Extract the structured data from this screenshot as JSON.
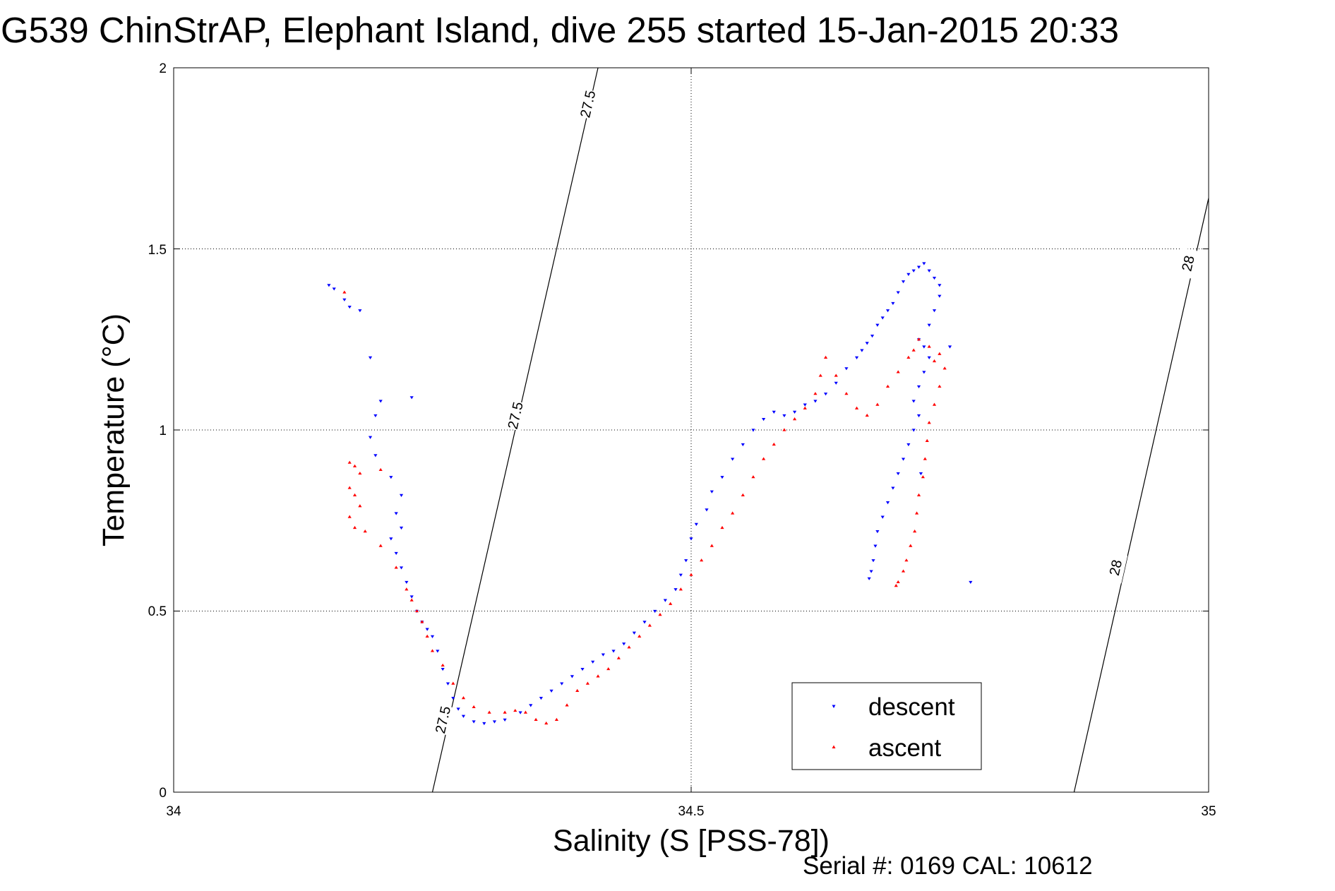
{
  "chart_data": {
    "type": "scatter",
    "title": "G539 ChinStrAP, Elephant Island, dive 255 started 15-Jan-2015 20:33",
    "xlabel": "Salinity (S [PSS-78])",
    "ylabel": "Temperature (°C)",
    "xlim": [
      34,
      35
    ],
    "ylim": [
      0,
      2
    ],
    "x_ticks": [
      "34",
      "34.5",
      "35"
    ],
    "y_ticks": [
      "0",
      "0.5",
      "1",
      "1.5",
      "2"
    ],
    "grid": true,
    "legend_position": "bottom-right",
    "footer": "Serial #: 0169 CAL: 10612",
    "density_contours": [
      {
        "label": "27.5",
        "points": [
          [
            34.25,
            0.0
          ],
          [
            34.41,
            2.0
          ]
        ],
        "label_positions": [
          [
            34.26,
            0.2
          ],
          [
            34.33,
            1.04
          ],
          [
            34.4,
            1.9
          ]
        ]
      },
      {
        "label": "28",
        "points": [
          [
            34.87,
            0.0
          ],
          [
            35.0,
            1.64
          ]
        ],
        "label_positions": [
          [
            34.91,
            0.62
          ],
          [
            34.98,
            1.46
          ]
        ]
      }
    ],
    "series": [
      {
        "name": "descent",
        "color": "#0000ff",
        "marker": "triangle-down",
        "points": [
          [
            34.15,
            1.4
          ],
          [
            34.155,
            1.39
          ],
          [
            34.165,
            1.36
          ],
          [
            34.17,
            1.34
          ],
          [
            34.18,
            1.33
          ],
          [
            34.19,
            1.2
          ],
          [
            34.2,
            1.08
          ],
          [
            34.23,
            1.09
          ],
          [
            34.195,
            1.04
          ],
          [
            34.19,
            0.98
          ],
          [
            34.195,
            0.93
          ],
          [
            34.21,
            0.87
          ],
          [
            34.22,
            0.82
          ],
          [
            34.215,
            0.77
          ],
          [
            34.22,
            0.73
          ],
          [
            34.21,
            0.7
          ],
          [
            34.215,
            0.66
          ],
          [
            34.22,
            0.62
          ],
          [
            34.225,
            0.58
          ],
          [
            34.23,
            0.54
          ],
          [
            34.235,
            0.5
          ],
          [
            34.24,
            0.47
          ],
          [
            34.245,
            0.45
          ],
          [
            34.25,
            0.43
          ],
          [
            34.255,
            0.39
          ],
          [
            34.26,
            0.34
          ],
          [
            34.265,
            0.3
          ],
          [
            34.27,
            0.26
          ],
          [
            34.275,
            0.23
          ],
          [
            34.28,
            0.21
          ],
          [
            34.29,
            0.195
          ],
          [
            34.3,
            0.19
          ],
          [
            34.31,
            0.195
          ],
          [
            34.32,
            0.2
          ],
          [
            34.335,
            0.22
          ],
          [
            34.345,
            0.24
          ],
          [
            34.355,
            0.26
          ],
          [
            34.365,
            0.28
          ],
          [
            34.375,
            0.3
          ],
          [
            34.385,
            0.32
          ],
          [
            34.395,
            0.34
          ],
          [
            34.405,
            0.36
          ],
          [
            34.415,
            0.38
          ],
          [
            34.425,
            0.39
          ],
          [
            34.435,
            0.41
          ],
          [
            34.445,
            0.44
          ],
          [
            34.455,
            0.47
          ],
          [
            34.465,
            0.5
          ],
          [
            34.475,
            0.53
          ],
          [
            34.485,
            0.56
          ],
          [
            34.49,
            0.6
          ],
          [
            34.495,
            0.64
          ],
          [
            34.5,
            0.7
          ],
          [
            34.505,
            0.74
          ],
          [
            34.515,
            0.78
          ],
          [
            34.52,
            0.83
          ],
          [
            34.53,
            0.87
          ],
          [
            34.54,
            0.92
          ],
          [
            34.55,
            0.96
          ],
          [
            34.56,
            1.0
          ],
          [
            34.57,
            1.03
          ],
          [
            34.58,
            1.05
          ],
          [
            34.59,
            1.04
          ],
          [
            34.6,
            1.05
          ],
          [
            34.61,
            1.07
          ],
          [
            34.62,
            1.08
          ],
          [
            34.63,
            1.1
          ],
          [
            34.64,
            1.13
          ],
          [
            34.65,
            1.17
          ],
          [
            34.66,
            1.2
          ],
          [
            34.665,
            1.22
          ],
          [
            34.67,
            1.24
          ],
          [
            34.675,
            1.26
          ],
          [
            34.68,
            1.29
          ],
          [
            34.685,
            1.31
          ],
          [
            34.69,
            1.33
          ],
          [
            34.695,
            1.35
          ],
          [
            34.7,
            1.38
          ],
          [
            34.705,
            1.41
          ],
          [
            34.71,
            1.43
          ],
          [
            34.715,
            1.44
          ],
          [
            34.72,
            1.45
          ],
          [
            34.725,
            1.46
          ],
          [
            34.73,
            1.44
          ],
          [
            34.735,
            1.42
          ],
          [
            34.74,
            1.4
          ],
          [
            34.74,
            1.37
          ],
          [
            34.735,
            1.33
          ],
          [
            34.73,
            1.29
          ],
          [
            34.72,
            1.25
          ],
          [
            34.725,
            1.23
          ],
          [
            34.73,
            1.2
          ],
          [
            34.725,
            1.16
          ],
          [
            34.72,
            1.12
          ],
          [
            34.715,
            1.08
          ],
          [
            34.72,
            1.04
          ],
          [
            34.715,
            1.0
          ],
          [
            34.71,
            0.96
          ],
          [
            34.705,
            0.92
          ],
          [
            34.7,
            0.88
          ],
          [
            34.695,
            0.84
          ],
          [
            34.69,
            0.8
          ],
          [
            34.685,
            0.76
          ],
          [
            34.68,
            0.72
          ],
          [
            34.678,
            0.68
          ],
          [
            34.676,
            0.64
          ],
          [
            34.674,
            0.61
          ],
          [
            34.672,
            0.59
          ],
          [
            34.722,
            0.88
          ],
          [
            34.75,
            1.23
          ],
          [
            34.77,
            0.58
          ]
        ]
      },
      {
        "name": "ascent",
        "color": "#ff0000",
        "marker": "triangle-up",
        "points": [
          [
            34.165,
            1.38
          ],
          [
            34.17,
            0.91
          ],
          [
            34.175,
            0.9
          ],
          [
            34.18,
            0.88
          ],
          [
            34.2,
            0.89
          ],
          [
            34.17,
            0.84
          ],
          [
            34.175,
            0.82
          ],
          [
            34.18,
            0.79
          ],
          [
            34.17,
            0.76
          ],
          [
            34.175,
            0.73
          ],
          [
            34.185,
            0.72
          ],
          [
            34.2,
            0.68
          ],
          [
            34.215,
            0.62
          ],
          [
            34.225,
            0.56
          ],
          [
            34.23,
            0.53
          ],
          [
            34.235,
            0.5
          ],
          [
            34.24,
            0.47
          ],
          [
            34.245,
            0.43
          ],
          [
            34.25,
            0.39
          ],
          [
            34.26,
            0.35
          ],
          [
            34.27,
            0.3
          ],
          [
            34.28,
            0.26
          ],
          [
            34.29,
            0.235
          ],
          [
            34.305,
            0.22
          ],
          [
            34.32,
            0.22
          ],
          [
            34.33,
            0.225
          ],
          [
            34.34,
            0.22
          ],
          [
            34.35,
            0.2
          ],
          [
            34.36,
            0.19
          ],
          [
            34.37,
            0.2
          ],
          [
            34.38,
            0.24
          ],
          [
            34.39,
            0.28
          ],
          [
            34.4,
            0.3
          ],
          [
            34.41,
            0.32
          ],
          [
            34.42,
            0.34
          ],
          [
            34.43,
            0.37
          ],
          [
            34.44,
            0.4
          ],
          [
            34.45,
            0.43
          ],
          [
            34.46,
            0.46
          ],
          [
            34.47,
            0.49
          ],
          [
            34.48,
            0.52
          ],
          [
            34.49,
            0.56
          ],
          [
            34.5,
            0.6
          ],
          [
            34.51,
            0.64
          ],
          [
            34.52,
            0.68
          ],
          [
            34.53,
            0.73
          ],
          [
            34.54,
            0.77
          ],
          [
            34.55,
            0.82
          ],
          [
            34.56,
            0.87
          ],
          [
            34.57,
            0.92
          ],
          [
            34.58,
            0.96
          ],
          [
            34.59,
            1.0
          ],
          [
            34.6,
            1.03
          ],
          [
            34.61,
            1.06
          ],
          [
            34.62,
            1.1
          ],
          [
            34.625,
            1.15
          ],
          [
            34.63,
            1.2
          ],
          [
            34.64,
            1.15
          ],
          [
            34.65,
            1.1
          ],
          [
            34.66,
            1.06
          ],
          [
            34.67,
            1.04
          ],
          [
            34.68,
            1.07
          ],
          [
            34.69,
            1.12
          ],
          [
            34.7,
            1.16
          ],
          [
            34.71,
            1.2
          ],
          [
            34.715,
            1.22
          ],
          [
            34.72,
            1.25
          ],
          [
            34.73,
            1.23
          ],
          [
            34.735,
            1.19
          ],
          [
            34.74,
            1.21
          ],
          [
            34.745,
            1.17
          ],
          [
            34.74,
            1.12
          ],
          [
            34.735,
            1.07
          ],
          [
            34.73,
            1.02
          ],
          [
            34.728,
            0.97
          ],
          [
            34.726,
            0.92
          ],
          [
            34.724,
            0.87
          ],
          [
            34.72,
            0.82
          ],
          [
            34.718,
            0.77
          ],
          [
            34.716,
            0.72
          ],
          [
            34.712,
            0.68
          ],
          [
            34.708,
            0.64
          ],
          [
            34.705,
            0.61
          ],
          [
            34.7,
            0.58
          ],
          [
            34.698,
            0.57
          ]
        ]
      }
    ]
  }
}
